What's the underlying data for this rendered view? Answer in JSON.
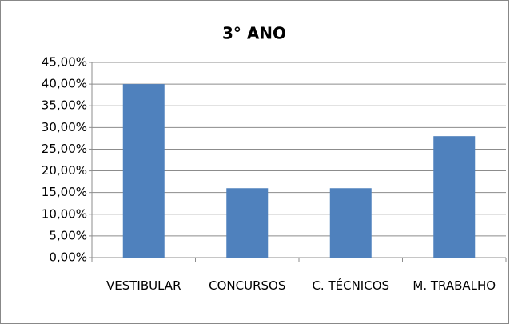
{
  "chart_data": {
    "type": "bar",
    "title": "3° ANO",
    "categories": [
      "VESTIBULAR",
      "CONCURSOS",
      "C. TÉCNICOS",
      "M. TRABALHO"
    ],
    "values": [
      40,
      16,
      16,
      28
    ],
    "color": "#4f81bd",
    "ylim": [
      0,
      45
    ],
    "yticks": [
      {
        "value": 0,
        "label": "0,00%"
      },
      {
        "value": 5,
        "label": "5,00%"
      },
      {
        "value": 10,
        "label": "10,00%"
      },
      {
        "value": 15,
        "label": "15,00%"
      },
      {
        "value": 20,
        "label": "20,00%"
      },
      {
        "value": 25,
        "label": "25,00%"
      },
      {
        "value": 30,
        "label": "30,00%"
      },
      {
        "value": 35,
        "label": "35,00%"
      },
      {
        "value": 40,
        "label": "40,00%"
      },
      {
        "value": 45,
        "label": "45,00%"
      }
    ],
    "grid": true
  }
}
